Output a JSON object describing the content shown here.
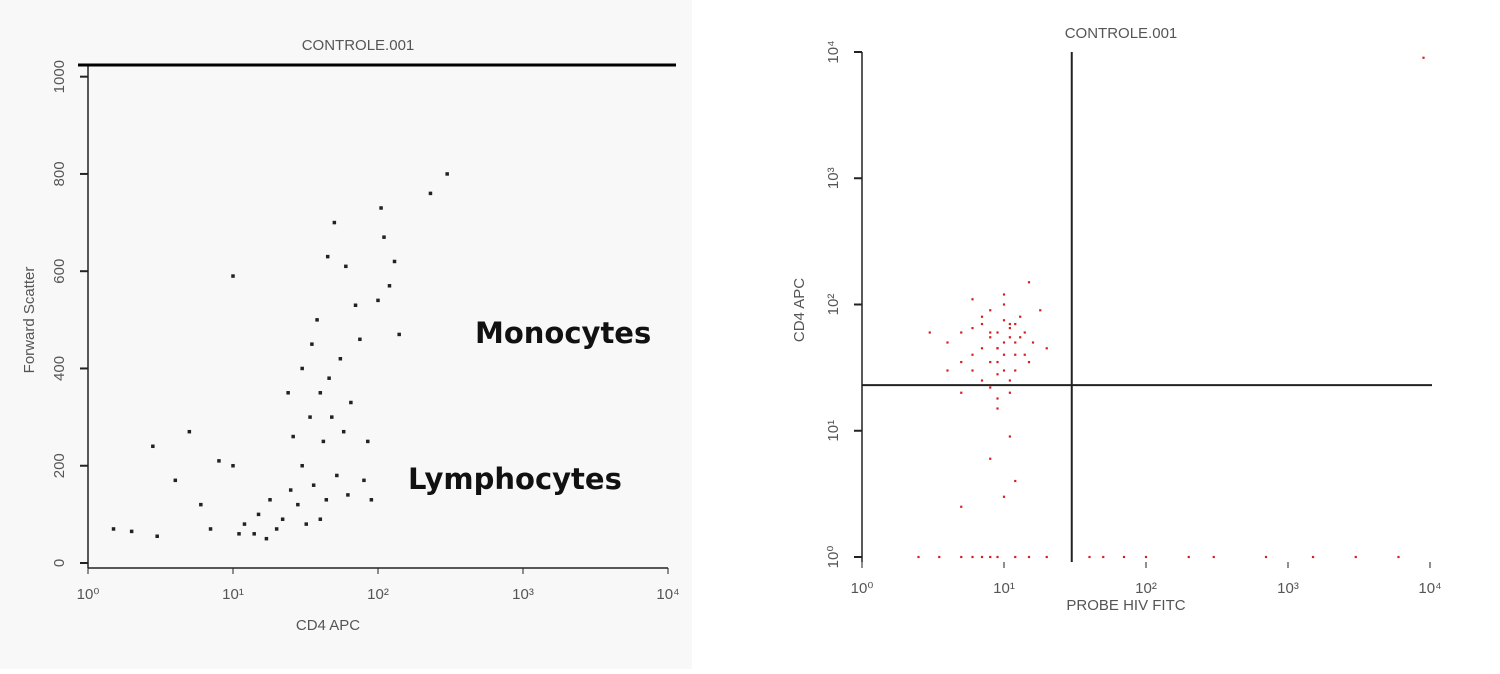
{
  "chart_data": [
    {
      "type": "scatter",
      "title": "CONTROLE.001",
      "x_label": "CD4 APC",
      "y_label": "Forward Scatter",
      "annotations": [
        "Monocytes",
        "Lymphocytes"
      ],
      "x_log": true,
      "y_log": false,
      "xlim": [
        1,
        10000
      ],
      "ylim": [
        0,
        1024
      ],
      "xticks": [
        {
          "value": 1,
          "label": "10⁰"
        },
        {
          "value": 10,
          "label": "10¹"
        },
        {
          "value": 100,
          "label": "10²"
        },
        {
          "value": 1000,
          "label": "10³"
        },
        {
          "value": 10000,
          "label": "10⁴"
        }
      ],
      "yticks": [
        0,
        200,
        400,
        600,
        800,
        1000
      ],
      "color": "#222222",
      "x": [
        1.5,
        2,
        2.8,
        3,
        4,
        5,
        6,
        7,
        8,
        10,
        10,
        11,
        12,
        14,
        15,
        17,
        18,
        20,
        22,
        24,
        25,
        26,
        28,
        30,
        30,
        32,
        34,
        35,
        36,
        38,
        40,
        40,
        42,
        44,
        45,
        46,
        48,
        50,
        52,
        55,
        58,
        60,
        62,
        65,
        70,
        75,
        80,
        85,
        90,
        100,
        105,
        110,
        120,
        130,
        140,
        230,
        300
      ],
      "values": [
        70,
        65,
        240,
        55,
        170,
        270,
        120,
        70,
        210,
        200,
        590,
        60,
        80,
        60,
        100,
        50,
        130,
        70,
        90,
        350,
        150,
        260,
        120,
        400,
        200,
        80,
        300,
        450,
        160,
        500,
        350,
        90,
        250,
        130,
        630,
        380,
        300,
        700,
        180,
        420,
        270,
        610,
        140,
        330,
        530,
        460,
        170,
        250,
        130,
        540,
        730,
        670,
        570,
        620,
        470,
        760,
        800
      ]
    },
    {
      "type": "scatter",
      "title": "CONTROLE.001",
      "x_label": "PROBE HIV FITC",
      "y_label": "CD4 APC",
      "x_log": true,
      "y_log": true,
      "xlim": [
        1,
        10000
      ],
      "ylim": [
        1,
        10000
      ],
      "xticks": [
        {
          "value": 1,
          "label": "10⁰"
        },
        {
          "value": 10,
          "label": "10¹"
        },
        {
          "value": 100,
          "label": "10²"
        },
        {
          "value": 1000,
          "label": "10³"
        },
        {
          "value": 10000,
          "label": "10⁴"
        }
      ],
      "yticks": [
        {
          "value": 1,
          "label": "10⁰"
        },
        {
          "value": 10,
          "label": "10¹"
        },
        {
          "value": 100,
          "label": "10²"
        },
        {
          "value": 1000,
          "label": "10³"
        },
        {
          "value": 10000,
          "label": "10⁴"
        }
      ],
      "quadrant": {
        "x": 30,
        "y": 23
      },
      "color": "#d62020",
      "x": [
        4,
        5,
        6,
        7,
        8,
        9,
        10,
        11,
        12,
        13,
        14,
        15,
        6,
        7,
        8,
        9,
        10,
        11,
        12,
        8,
        9,
        10,
        11,
        5,
        6,
        7,
        9,
        10,
        13,
        16,
        18,
        20,
        4,
        3,
        5,
        8,
        9,
        10,
        11,
        12,
        7,
        8,
        14,
        6,
        9,
        10,
        12,
        15,
        11,
        9,
        8,
        5,
        12,
        10,
        11,
        2.5,
        3.5,
        5,
        6,
        7,
        8,
        9,
        12,
        15,
        20,
        40,
        50,
        70,
        100,
        200,
        300,
        700,
        1500,
        3000,
        6000,
        9000
      ],
      "values": [
        50,
        60,
        40,
        70,
        55,
        45,
        50,
        65,
        40,
        55,
        60,
        35,
        30,
        80,
        90,
        35,
        100,
        70,
        30,
        60,
        45,
        40,
        55,
        35,
        65,
        25,
        28,
        120,
        80,
        50,
        90,
        45,
        30,
        60,
        20,
        22,
        18,
        75,
        25,
        50,
        45,
        35,
        40,
        110,
        60,
        30,
        70,
        150,
        20,
        15,
        6,
        2.5,
        4,
        3,
        9,
        1,
        1,
        1,
        1,
        1,
        1,
        1,
        1,
        1,
        1,
        1,
        1,
        1,
        1,
        1,
        1,
        1,
        1,
        1,
        1,
        9000
      ]
    }
  ]
}
